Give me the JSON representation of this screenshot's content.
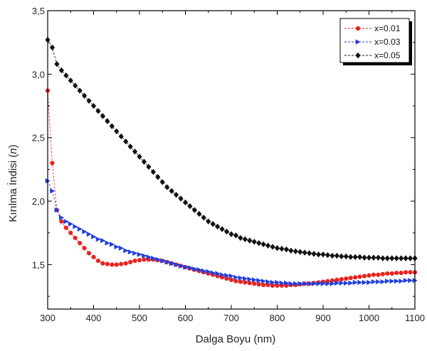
{
  "chart_data": {
    "type": "scatter",
    "title": "",
    "xlabel": "Dalga Boyu (nm)",
    "ylabel_prefix": "Kırılma İndisi (",
    "ylabel_symbol": "n",
    "ylabel_suffix": ")",
    "xlim": [
      300,
      1100
    ],
    "ylim": [
      1.15,
      3.5
    ],
    "xticks": [
      300,
      400,
      500,
      600,
      700,
      800,
      900,
      1000,
      1100
    ],
    "xtick_labels": [
      "300",
      "400",
      "500",
      "600",
      "700",
      "800",
      "900",
      "1000",
      "1100"
    ],
    "yticks": [
      1.5,
      2.0,
      2.5,
      3.0,
      3.5
    ],
    "ytick_labels": [
      "1,5",
      "2,0",
      "2,5",
      "3,0",
      "3,5"
    ],
    "legend_position": "top-right",
    "series": [
      {
        "name": "x=0.01",
        "color": "#e8231e",
        "marker": "circle",
        "points": [
          [
            300,
            2.87
          ],
          [
            310,
            2.3
          ],
          [
            320,
            1.93
          ],
          [
            330,
            1.84
          ],
          [
            340,
            1.79
          ],
          [
            350,
            1.75
          ],
          [
            360,
            1.71
          ],
          [
            370,
            1.67
          ],
          [
            380,
            1.63
          ],
          [
            390,
            1.59
          ],
          [
            400,
            1.56
          ],
          [
            410,
            1.53
          ],
          [
            420,
            1.51
          ],
          [
            430,
            1.505
          ],
          [
            440,
            1.5
          ],
          [
            450,
            1.5
          ],
          [
            460,
            1.505
          ],
          [
            470,
            1.51
          ],
          [
            480,
            1.52
          ],
          [
            490,
            1.53
          ],
          [
            500,
            1.535
          ],
          [
            510,
            1.54
          ],
          [
            520,
            1.54
          ],
          [
            530,
            1.54
          ],
          [
            540,
            1.535
          ],
          [
            550,
            1.53
          ],
          [
            560,
            1.52
          ],
          [
            570,
            1.51
          ],
          [
            580,
            1.5
          ],
          [
            590,
            1.49
          ],
          [
            600,
            1.48
          ],
          [
            610,
            1.47
          ],
          [
            620,
            1.46
          ],
          [
            630,
            1.45
          ],
          [
            640,
            1.44
          ],
          [
            650,
            1.43
          ],
          [
            660,
            1.42
          ],
          [
            670,
            1.41
          ],
          [
            680,
            1.4
          ],
          [
            690,
            1.39
          ],
          [
            700,
            1.38
          ],
          [
            710,
            1.37
          ],
          [
            720,
            1.365
          ],
          [
            730,
            1.36
          ],
          [
            740,
            1.355
          ],
          [
            750,
            1.35
          ],
          [
            760,
            1.345
          ],
          [
            770,
            1.34
          ],
          [
            780,
            1.34
          ],
          [
            790,
            1.335
          ],
          [
            800,
            1.335
          ],
          [
            810,
            1.335
          ],
          [
            820,
            1.335
          ],
          [
            830,
            1.34
          ],
          [
            840,
            1.34
          ],
          [
            850,
            1.345
          ],
          [
            860,
            1.35
          ],
          [
            870,
            1.35
          ],
          [
            880,
            1.355
          ],
          [
            890,
            1.36
          ],
          [
            900,
            1.365
          ],
          [
            910,
            1.37
          ],
          [
            920,
            1.375
          ],
          [
            930,
            1.38
          ],
          [
            940,
            1.385
          ],
          [
            950,
            1.39
          ],
          [
            960,
            1.395
          ],
          [
            970,
            1.4
          ],
          [
            980,
            1.405
          ],
          [
            990,
            1.41
          ],
          [
            1000,
            1.415
          ],
          [
            1010,
            1.42
          ],
          [
            1020,
            1.42
          ],
          [
            1030,
            1.425
          ],
          [
            1040,
            1.43
          ],
          [
            1050,
            1.43
          ],
          [
            1060,
            1.435
          ],
          [
            1070,
            1.435
          ],
          [
            1080,
            1.44
          ],
          [
            1090,
            1.44
          ],
          [
            1100,
            1.44
          ]
        ]
      },
      {
        "name": "x=0.03",
        "color": "#1f3fe0",
        "marker": "triangle-right",
        "points": [
          [
            300,
            2.16
          ],
          [
            310,
            2.08
          ],
          [
            320,
            1.93
          ],
          [
            330,
            1.87
          ],
          [
            340,
            1.84
          ],
          [
            350,
            1.82
          ],
          [
            360,
            1.8
          ],
          [
            370,
            1.78
          ],
          [
            380,
            1.76
          ],
          [
            390,
            1.74
          ],
          [
            400,
            1.72
          ],
          [
            410,
            1.7
          ],
          [
            420,
            1.69
          ],
          [
            430,
            1.67
          ],
          [
            440,
            1.66
          ],
          [
            450,
            1.64
          ],
          [
            460,
            1.63
          ],
          [
            470,
            1.61
          ],
          [
            480,
            1.6
          ],
          [
            490,
            1.59
          ],
          [
            500,
            1.58
          ],
          [
            510,
            1.57
          ],
          [
            520,
            1.56
          ],
          [
            530,
            1.55
          ],
          [
            540,
            1.54
          ],
          [
            550,
            1.53
          ],
          [
            560,
            1.52
          ],
          [
            570,
            1.51
          ],
          [
            580,
            1.5
          ],
          [
            590,
            1.49
          ],
          [
            600,
            1.48
          ],
          [
            610,
            1.475
          ],
          [
            620,
            1.465
          ],
          [
            630,
            1.46
          ],
          [
            640,
            1.45
          ],
          [
            650,
            1.445
          ],
          [
            660,
            1.435
          ],
          [
            670,
            1.43
          ],
          [
            680,
            1.42
          ],
          [
            690,
            1.415
          ],
          [
            700,
            1.41
          ],
          [
            710,
            1.4
          ],
          [
            720,
            1.395
          ],
          [
            730,
            1.39
          ],
          [
            740,
            1.385
          ],
          [
            750,
            1.38
          ],
          [
            760,
            1.375
          ],
          [
            770,
            1.37
          ],
          [
            780,
            1.365
          ],
          [
            790,
            1.36
          ],
          [
            800,
            1.36
          ],
          [
            810,
            1.355
          ],
          [
            820,
            1.355
          ],
          [
            830,
            1.35
          ],
          [
            840,
            1.35
          ],
          [
            850,
            1.35
          ],
          [
            860,
            1.35
          ],
          [
            870,
            1.35
          ],
          [
            880,
            1.35
          ],
          [
            890,
            1.35
          ],
          [
            900,
            1.35
          ],
          [
            910,
            1.35
          ],
          [
            920,
            1.35
          ],
          [
            930,
            1.355
          ],
          [
            940,
            1.355
          ],
          [
            950,
            1.355
          ],
          [
            960,
            1.355
          ],
          [
            970,
            1.36
          ],
          [
            980,
            1.36
          ],
          [
            990,
            1.36
          ],
          [
            1000,
            1.36
          ],
          [
            1010,
            1.365
          ],
          [
            1020,
            1.365
          ],
          [
            1030,
            1.365
          ],
          [
            1040,
            1.37
          ],
          [
            1050,
            1.37
          ],
          [
            1060,
            1.37
          ],
          [
            1070,
            1.37
          ],
          [
            1080,
            1.375
          ],
          [
            1090,
            1.375
          ],
          [
            1100,
            1.375
          ]
        ]
      },
      {
        "name": "x=0.05",
        "color": "#111111",
        "marker": "diamond",
        "points": [
          [
            300,
            3.27
          ],
          [
            310,
            3.21
          ],
          [
            320,
            3.08
          ],
          [
            330,
            3.03
          ],
          [
            340,
            2.99
          ],
          [
            350,
            2.95
          ],
          [
            360,
            2.91
          ],
          [
            370,
            2.87
          ],
          [
            380,
            2.83
          ],
          [
            390,
            2.79
          ],
          [
            400,
            2.75
          ],
          [
            410,
            2.71
          ],
          [
            420,
            2.67
          ],
          [
            430,
            2.63
          ],
          [
            440,
            2.59
          ],
          [
            450,
            2.55
          ],
          [
            460,
            2.51
          ],
          [
            470,
            2.47
          ],
          [
            480,
            2.43
          ],
          [
            490,
            2.39
          ],
          [
            500,
            2.35
          ],
          [
            510,
            2.31
          ],
          [
            520,
            2.27
          ],
          [
            530,
            2.23
          ],
          [
            540,
            2.19
          ],
          [
            550,
            2.15
          ],
          [
            560,
            2.11
          ],
          [
            570,
            2.08
          ],
          [
            580,
            2.05
          ],
          [
            590,
            2.02
          ],
          [
            600,
            1.99
          ],
          [
            610,
            1.96
          ],
          [
            620,
            1.93
          ],
          [
            630,
            1.9
          ],
          [
            640,
            1.87
          ],
          [
            650,
            1.84
          ],
          [
            660,
            1.82
          ],
          [
            670,
            1.8
          ],
          [
            680,
            1.78
          ],
          [
            690,
            1.76
          ],
          [
            700,
            1.74
          ],
          [
            710,
            1.73
          ],
          [
            720,
            1.71
          ],
          [
            730,
            1.7
          ],
          [
            740,
            1.69
          ],
          [
            750,
            1.68
          ],
          [
            760,
            1.67
          ],
          [
            770,
            1.66
          ],
          [
            780,
            1.65
          ],
          [
            790,
            1.64
          ],
          [
            800,
            1.63
          ],
          [
            810,
            1.625
          ],
          [
            820,
            1.62
          ],
          [
            830,
            1.61
          ],
          [
            840,
            1.605
          ],
          [
            850,
            1.6
          ],
          [
            860,
            1.595
          ],
          [
            870,
            1.59
          ],
          [
            880,
            1.585
          ],
          [
            890,
            1.58
          ],
          [
            900,
            1.58
          ],
          [
            910,
            1.575
          ],
          [
            920,
            1.57
          ],
          [
            930,
            1.57
          ],
          [
            940,
            1.565
          ],
          [
            950,
            1.565
          ],
          [
            960,
            1.56
          ],
          [
            970,
            1.56
          ],
          [
            980,
            1.56
          ],
          [
            990,
            1.555
          ],
          [
            1000,
            1.555
          ],
          [
            1010,
            1.555
          ],
          [
            1020,
            1.555
          ],
          [
            1030,
            1.55
          ],
          [
            1040,
            1.55
          ],
          [
            1050,
            1.55
          ],
          [
            1060,
            1.55
          ],
          [
            1070,
            1.55
          ],
          [
            1080,
            1.55
          ],
          [
            1090,
            1.55
          ],
          [
            1100,
            1.55
          ]
        ]
      }
    ]
  }
}
